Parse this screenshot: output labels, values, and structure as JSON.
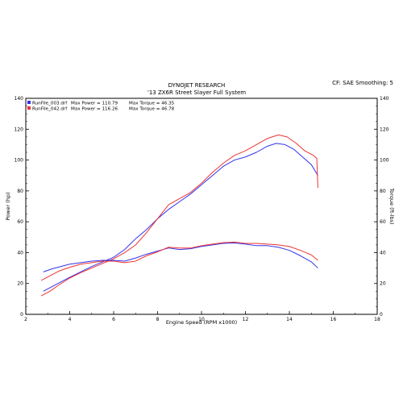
{
  "header": {
    "title": "DYNOJET RESEARCH",
    "subtitle": "'13 ZX6R Street Slayer Full System",
    "settings": "CF: SAE  Smoothing: 5"
  },
  "chart_data": {
    "type": "line",
    "xlabel": "Engine Speed (RPM x1000)",
    "ylabel_left": "Power (hp)",
    "ylabel_right": "Torque (ft-lbs)",
    "xlim": [
      2,
      18
    ],
    "ylim": [
      0,
      140
    ],
    "xticks": [
      "2",
      "4",
      "6",
      "8",
      "10",
      "12",
      "14",
      "16",
      "18"
    ],
    "yticks_left": [
      "0",
      "20",
      "40",
      "60",
      "80",
      "100",
      "120",
      "140"
    ],
    "yticks_right": [
      "0",
      "20",
      "40",
      "60",
      "80",
      "100",
      "120",
      "140"
    ],
    "grid": false,
    "legend_position": "top-left",
    "legend": [
      {
        "file": "RunFile_003.drf",
        "power_label": "Max Power = 110.79",
        "torque_label": "Max Torque = 46.35",
        "color": "#3333ee"
      },
      {
        "file": "RunFile_042.drf",
        "power_label": "Max Power = 116.26",
        "torque_label": "Max Torque = 46.78",
        "color": "#ee3333"
      }
    ],
    "series": [
      {
        "id": "run003-power",
        "kind": "power",
        "color": "#3333ee",
        "points": [
          [
            2.8,
            15
          ],
          [
            3.2,
            18
          ],
          [
            3.6,
            21
          ],
          [
            4.0,
            24
          ],
          [
            4.5,
            27.5
          ],
          [
            5.0,
            31
          ],
          [
            5.5,
            34
          ],
          [
            6.0,
            37
          ],
          [
            6.5,
            42
          ],
          [
            7.0,
            49
          ],
          [
            7.5,
            55
          ],
          [
            8.0,
            62
          ],
          [
            8.5,
            68
          ],
          [
            9.0,
            73
          ],
          [
            9.5,
            78
          ],
          [
            10.0,
            84
          ],
          [
            10.5,
            90
          ],
          [
            11.0,
            96
          ],
          [
            11.5,
            100
          ],
          [
            12.0,
            102
          ],
          [
            12.5,
            105
          ],
          [
            13.0,
            109
          ],
          [
            13.4,
            110.8
          ],
          [
            13.8,
            110
          ],
          [
            14.2,
            107
          ],
          [
            14.6,
            102
          ],
          [
            15.0,
            97
          ],
          [
            15.3,
            90
          ]
        ]
      },
      {
        "id": "run042-power",
        "kind": "power",
        "color": "#ee3333",
        "points": [
          [
            2.7,
            12
          ],
          [
            3.1,
            15
          ],
          [
            3.5,
            19
          ],
          [
            4.0,
            23.5
          ],
          [
            4.5,
            27
          ],
          [
            5.0,
            30
          ],
          [
            5.5,
            33
          ],
          [
            6.0,
            36
          ],
          [
            6.5,
            40
          ],
          [
            7.0,
            45
          ],
          [
            7.5,
            53
          ],
          [
            8.0,
            62
          ],
          [
            8.5,
            71
          ],
          [
            9.0,
            75
          ],
          [
            9.5,
            79
          ],
          [
            10.0,
            85
          ],
          [
            10.5,
            92
          ],
          [
            11.0,
            98
          ],
          [
            11.5,
            103
          ],
          [
            12.0,
            106
          ],
          [
            12.5,
            110
          ],
          [
            13.0,
            114
          ],
          [
            13.5,
            116.3
          ],
          [
            13.9,
            115
          ],
          [
            14.3,
            111
          ],
          [
            14.7,
            106
          ],
          [
            15.1,
            103
          ],
          [
            15.25,
            101
          ],
          [
            15.3,
            82
          ]
        ]
      },
      {
        "id": "run003-torque",
        "kind": "torque",
        "color": "#3333ee",
        "points": [
          [
            2.8,
            27.5
          ],
          [
            3.2,
            29.5
          ],
          [
            3.6,
            31
          ],
          [
            4.0,
            32.5
          ],
          [
            4.5,
            33.5
          ],
          [
            5.0,
            34.5
          ],
          [
            5.5,
            35
          ],
          [
            6.0,
            35
          ],
          [
            6.5,
            34.5
          ],
          [
            7.0,
            36.5
          ],
          [
            7.5,
            39
          ],
          [
            8.0,
            41
          ],
          [
            8.5,
            43
          ],
          [
            9.0,
            42
          ],
          [
            9.5,
            42.5
          ],
          [
            10.0,
            44
          ],
          [
            10.5,
            45
          ],
          [
            11.0,
            46
          ],
          [
            11.5,
            46.3
          ],
          [
            12.0,
            45.5
          ],
          [
            12.5,
            44.5
          ],
          [
            13.0,
            44.5
          ],
          [
            13.5,
            43.5
          ],
          [
            14.0,
            41.5
          ],
          [
            14.5,
            38
          ],
          [
            15.0,
            34
          ],
          [
            15.3,
            30
          ]
        ]
      },
      {
        "id": "run042-torque",
        "kind": "torque",
        "color": "#ee3333",
        "points": [
          [
            2.7,
            22
          ],
          [
            3.1,
            25
          ],
          [
            3.5,
            28
          ],
          [
            4.0,
            30.5
          ],
          [
            4.5,
            32.5
          ],
          [
            5.0,
            33.5
          ],
          [
            5.5,
            34.5
          ],
          [
            6.0,
            34.5
          ],
          [
            6.5,
            33.5
          ],
          [
            7.0,
            34.5
          ],
          [
            7.5,
            38
          ],
          [
            8.0,
            40.5
          ],
          [
            8.5,
            43.5
          ],
          [
            9.0,
            43
          ],
          [
            9.5,
            43
          ],
          [
            10.0,
            44.5
          ],
          [
            10.5,
            45.5
          ],
          [
            11.0,
            46.5
          ],
          [
            11.5,
            46.8
          ],
          [
            12.0,
            46
          ],
          [
            12.5,
            46
          ],
          [
            13.0,
            45.5
          ],
          [
            13.5,
            45
          ],
          [
            14.0,
            44
          ],
          [
            14.5,
            41.5
          ],
          [
            15.0,
            38.5
          ],
          [
            15.3,
            35
          ]
        ]
      }
    ]
  }
}
